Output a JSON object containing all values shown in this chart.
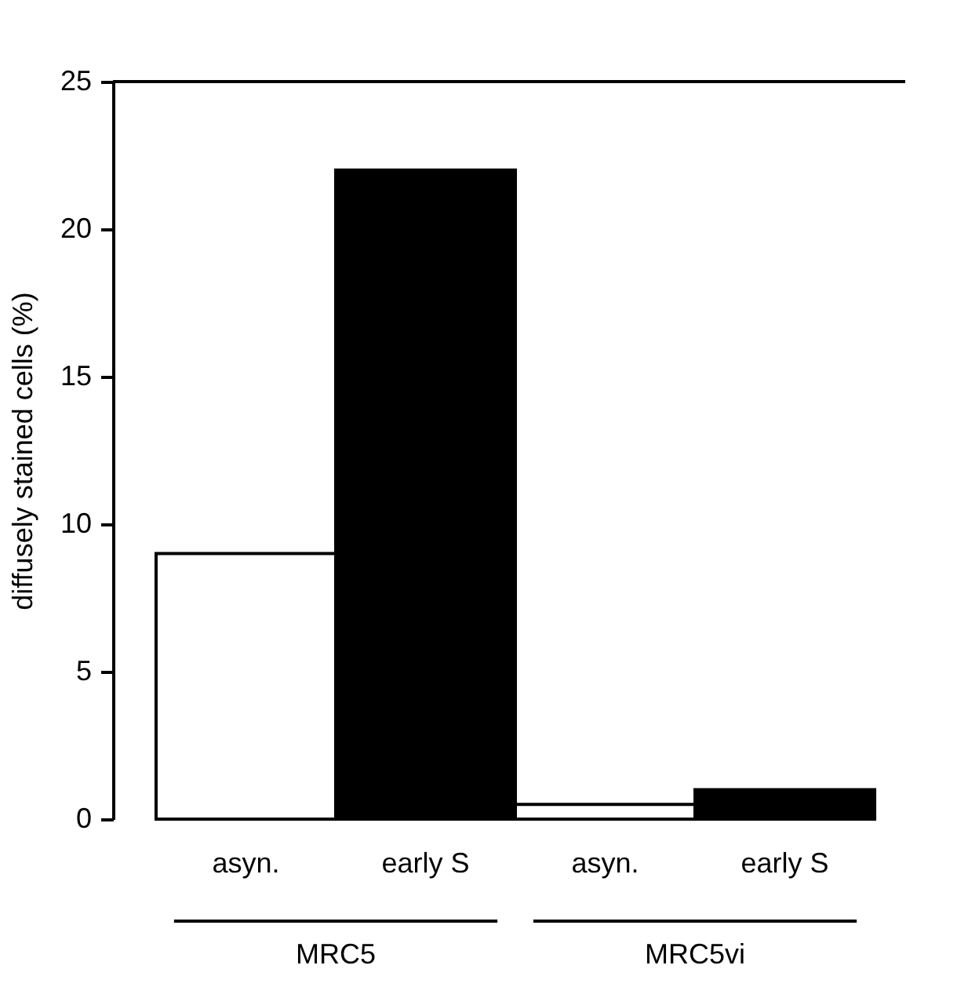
{
  "chart_data": {
    "type": "bar",
    "categories": [
      "asyn.",
      "early S",
      "asyn.",
      "early S"
    ],
    "values": [
      9,
      22,
      0.5,
      1
    ],
    "colors": [
      "#ffffff",
      "#000000",
      "#ffffff",
      "#000000"
    ],
    "ylabel": "diffusely stained cells (%)",
    "ylim": [
      0,
      25
    ],
    "yticks": [
      0,
      5,
      10,
      15,
      20,
      25
    ],
    "annotations": [
      "MRC5",
      "MRC5vi"
    ],
    "grid": false
  }
}
